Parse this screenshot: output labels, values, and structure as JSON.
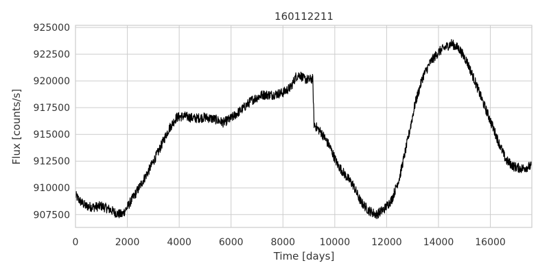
{
  "chart_data": {
    "type": "line",
    "title": "160112211",
    "xlabel": "Time [days]",
    "ylabel": "Flux [counts/s]",
    "xlim": [
      0,
      17600
    ],
    "ylim": [
      906300,
      925200
    ],
    "xticks": [
      0,
      2000,
      4000,
      6000,
      8000,
      10000,
      12000,
      14000,
      16000
    ],
    "xtick_labels": [
      "0",
      "2000",
      "4000",
      "6000",
      "8000",
      "10000",
      "12000",
      "14000",
      "16000"
    ],
    "yticks": [
      907500,
      910000,
      912500,
      915000,
      917500,
      920000,
      922500,
      925000
    ],
    "ytick_labels": [
      "907500",
      "910000",
      "912500",
      "915000",
      "917500",
      "920000",
      "922500",
      "925000"
    ],
    "grid": true,
    "legend": false,
    "colors": {
      "line": "#000000",
      "grid": "#cccccc",
      "text": "#333333"
    },
    "noise_amplitude": 450,
    "series": [
      {
        "x": [
          0,
          200,
          400,
          700,
          1000,
          1300,
          1600,
          1800,
          2000,
          2400,
          2800,
          3200,
          3600,
          3900,
          4200,
          4600,
          5000,
          5400,
          5700,
          6000,
          6400,
          6800,
          7200,
          7600,
          8000,
          8300,
          8500,
          8650,
          8800,
          9000,
          9150,
          9200,
          9250,
          9500,
          9800,
          10100,
          10400,
          10700,
          11000,
          11300,
          11600,
          11900,
          12200,
          12500,
          12800,
          13100,
          13400,
          13700,
          14000,
          14300,
          14500,
          14800,
          15100,
          15400,
          15700,
          16000,
          16300,
          16600,
          16900,
          17200,
          17500,
          17600
        ],
        "y": [
          909300,
          908700,
          908300,
          908200,
          908300,
          908000,
          907600,
          907500,
          908200,
          909800,
          911500,
          913400,
          915500,
          916600,
          916700,
          916500,
          916600,
          916400,
          916100,
          916500,
          917300,
          918200,
          918700,
          918700,
          918900,
          919400,
          920400,
          920600,
          920200,
          920100,
          920200,
          916000,
          915800,
          915100,
          913900,
          912200,
          911200,
          910300,
          908700,
          907900,
          907500,
          908000,
          908900,
          911000,
          914300,
          917900,
          920400,
          921800,
          922700,
          923200,
          923500,
          923000,
          921800,
          920000,
          918100,
          916300,
          914400,
          912600,
          912000,
          911800,
          912000,
          912000
        ]
      }
    ]
  }
}
